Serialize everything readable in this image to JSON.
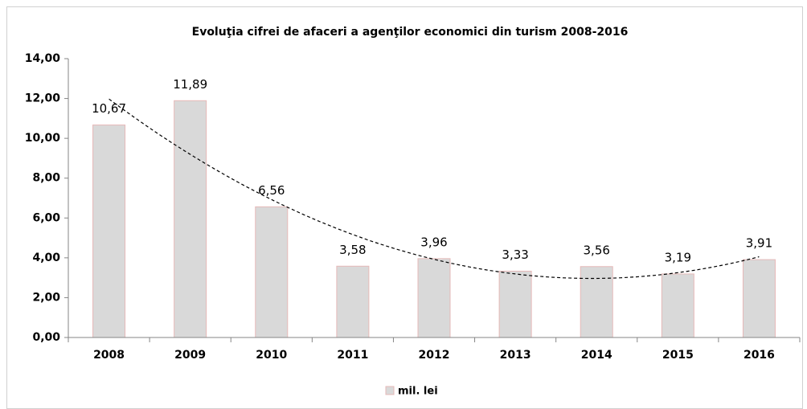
{
  "chart_data": {
    "type": "bar",
    "title": "Evoluţia cifrei de afaceri a agenţilor economici din turism 2008-2016",
    "categories": [
      "2008",
      "2009",
      "2010",
      "2011",
      "2012",
      "2013",
      "2014",
      "2015",
      "2016"
    ],
    "series": [
      {
        "name": "mil. lei",
        "color": "#d9d9d9",
        "values": [
          10.67,
          11.89,
          6.56,
          3.58,
          3.96,
          3.33,
          3.56,
          3.19,
          3.91
        ],
        "value_labels": [
          "10,67",
          "11,89",
          "6,56",
          "3,58",
          "3,96",
          "3,33",
          "3,56",
          "3,19",
          "3,91"
        ]
      }
    ],
    "ylim": [
      0,
      14
    ],
    "yticks": [
      {
        "value": 0,
        "label": "0,00"
      },
      {
        "value": 2,
        "label": "2,00"
      },
      {
        "value": 4,
        "label": "4,00"
      },
      {
        "value": 6,
        "label": "6,00"
      },
      {
        "value": 8,
        "label": "8,00"
      },
      {
        "value": 10,
        "label": "10,00"
      },
      {
        "value": 12,
        "label": "12,00"
      },
      {
        "value": 14,
        "label": "14,00"
      }
    ],
    "trendline": "polynomial",
    "legend": "bottom"
  }
}
